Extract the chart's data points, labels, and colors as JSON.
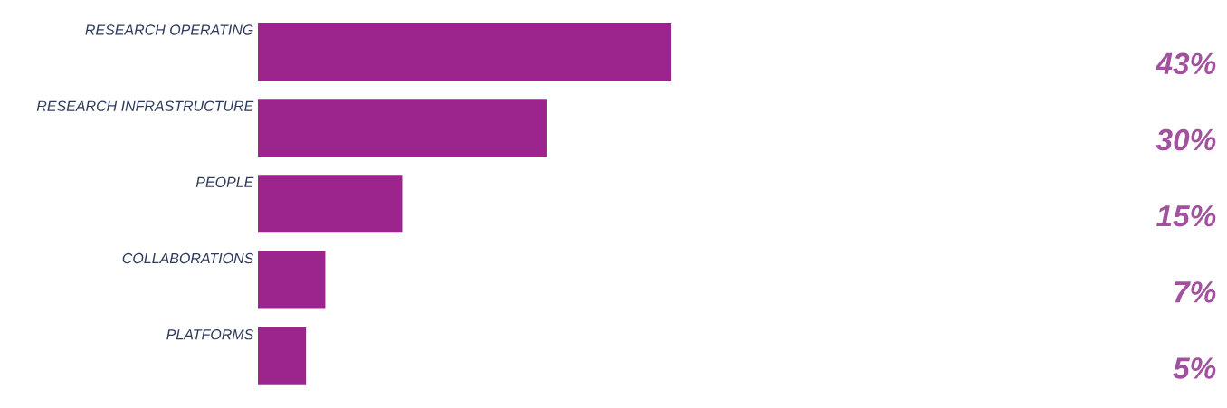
{
  "chart_data": {
    "type": "bar",
    "orientation": "horizontal",
    "categories": [
      "RESEARCH OPERATING",
      "RESEARCH INFRASTRUCTURE",
      "PEOPLE",
      "COLLABORATIONS",
      "PLATFORMS"
    ],
    "values": [
      43,
      30,
      15,
      7,
      5
    ],
    "value_labels": [
      "43%",
      "30%",
      "15%",
      "7%",
      "5%"
    ],
    "color": "#9b258d",
    "tick_labels": "y"
  }
}
